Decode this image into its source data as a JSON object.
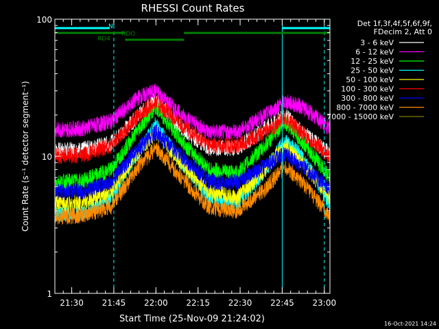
{
  "chart_data": {
    "type": "line",
    "title": "RHESSI Count Rates",
    "xlabel": "Start Time (25-Nov-09 21:24:02)",
    "ylabel": "Count Rate (s⁻¹ detector segment⁻¹)",
    "y_scale": "log",
    "ylim": [
      1,
      100
    ],
    "y_ticks": [
      1,
      10,
      100
    ],
    "y_tick_labels": [
      "1",
      "10",
      "100"
    ],
    "x_ticks": [
      "21:30",
      "21:45",
      "22:00",
      "22:15",
      "22:30",
      "22:45",
      "23:00"
    ],
    "x_tick_minutes": [
      6,
      21,
      36,
      51,
      66,
      81,
      96
    ],
    "xlim_minutes": [
      0,
      98
    ],
    "grid": false,
    "legend_header": [
      "Det 1f,3f,4f,5f,6f,9f,",
      "FDecim 2, Att 0"
    ],
    "legend_position": "right",
    "series": [
      {
        "name": "3 - 6 keV",
        "color": "#ffffff",
        "x": [
          0,
          10,
          20,
          30,
          36,
          45,
          55,
          65,
          75,
          82,
          88,
          98
        ],
        "y": [
          11,
          11.2,
          12.5,
          20,
          26,
          16,
          11.5,
          11.5,
          16,
          20,
          15,
          10.5
        ]
      },
      {
        "name": "6 - 12 keV",
        "color": "#ff00ff",
        "x": [
          0,
          10,
          20,
          30,
          36,
          45,
          55,
          65,
          75,
          82,
          88,
          98
        ],
        "y": [
          15.5,
          16,
          18,
          27,
          30,
          20,
          15,
          15,
          20,
          25,
          23,
          16
        ]
      },
      {
        "name": "12 - 25 keV",
        "color": "#00ff00",
        "x": [
          0,
          10,
          20,
          30,
          36,
          45,
          55,
          65,
          75,
          82,
          88,
          98
        ],
        "y": [
          6.5,
          6.6,
          8,
          16,
          23,
          13,
          8,
          7.5,
          12,
          18,
          13,
          7
        ]
      },
      {
        "name": "25 - 50 keV",
        "color": "#00ffff",
        "x": [
          0,
          10,
          20,
          30,
          36,
          45,
          55,
          65,
          75,
          82,
          88,
          98
        ],
        "y": [
          3.8,
          3.9,
          5,
          11,
          17,
          9,
          5,
          4.5,
          8,
          13,
          10,
          4.5
        ]
      },
      {
        "name": "50 - 100 keV",
        "color": "#ffff00",
        "x": [
          0,
          10,
          20,
          30,
          36,
          45,
          55,
          65,
          75,
          82,
          88,
          98
        ],
        "y": [
          4.5,
          4.6,
          5.5,
          11,
          15,
          9,
          5.5,
          5,
          8,
          12,
          9,
          5
        ]
      },
      {
        "name": "100 - 300 keV",
        "color": "#ff0000",
        "x": [
          0,
          10,
          20,
          30,
          36,
          45,
          55,
          65,
          75,
          82,
          88,
          98
        ],
        "y": [
          10,
          10.2,
          12,
          20,
          25,
          17,
          12,
          12,
          15,
          19,
          15,
          10
        ]
      },
      {
        "name": "300 - 800 keV",
        "color": "#0000ff",
        "x": [
          0,
          10,
          20,
          30,
          36,
          45,
          55,
          65,
          75,
          82,
          88,
          98
        ],
        "y": [
          5.5,
          5.6,
          6.5,
          11.5,
          15,
          10,
          6.5,
          6.5,
          8.5,
          10.5,
          8.5,
          5.8
        ]
      },
      {
        "name": "800 - 7000 keV",
        "color": "#ff8c00",
        "x": [
          0,
          10,
          20,
          30,
          36,
          45,
          55,
          65,
          75,
          82,
          88,
          98
        ],
        "y": [
          3.6,
          3.7,
          4.3,
          8.5,
          11.5,
          7,
          4.2,
          4,
          5.8,
          8.5,
          6.5,
          3.6
        ]
      },
      {
        "name": "7000 - 15000 keV",
        "color": "#808000",
        "x": [],
        "y": []
      }
    ],
    "vertical_lines_minutes": [
      0,
      21,
      81,
      96
    ],
    "attenuator_bars": [
      {
        "label": "N",
        "color": "#00ffff",
        "segments": [
          [
            0,
            19.5
          ],
          [
            81,
            98
          ]
        ]
      },
      {
        "label": "RDO",
        "color": "#007f00",
        "segments": [
          [
            0,
            25
          ],
          [
            46,
            98
          ]
        ]
      },
      {
        "label": "RD4",
        "color": "#007f00",
        "segments": [
          [
            25,
            46
          ]
        ]
      }
    ]
  },
  "footer_timestamp": "16-Oct-2021 14:24"
}
